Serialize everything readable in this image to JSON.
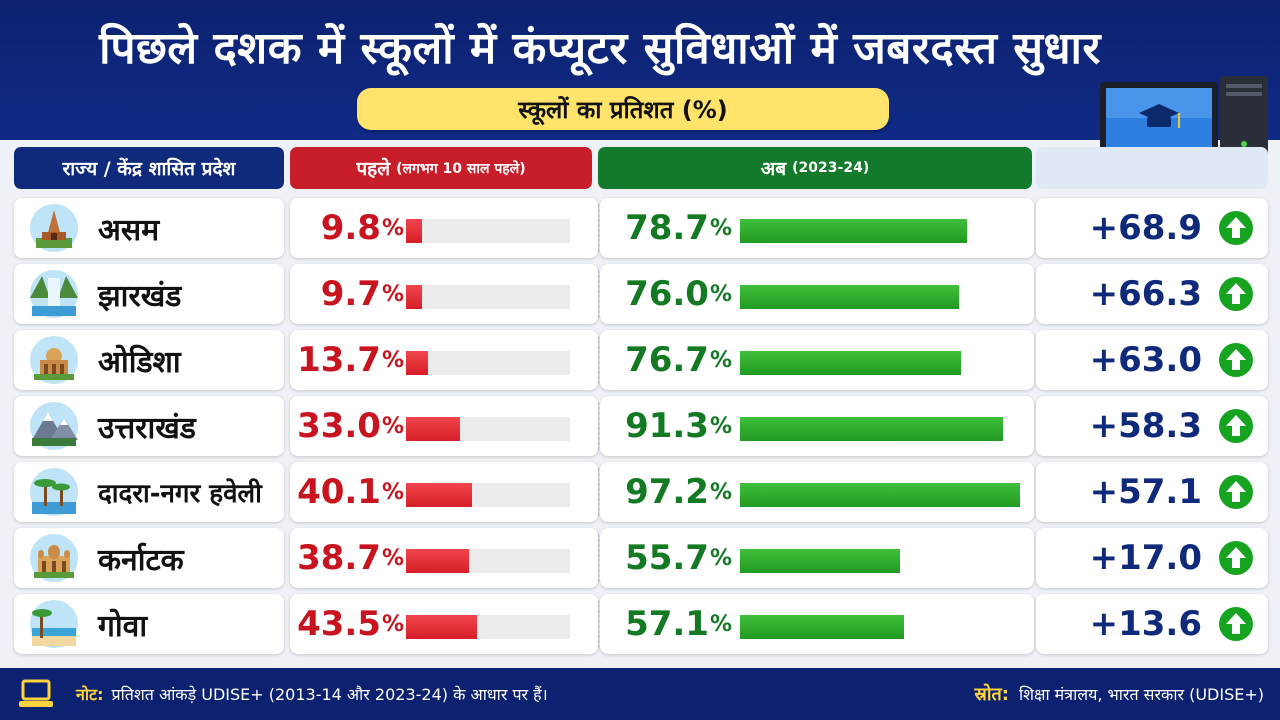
{
  "header": {
    "title": "पिछले दशक में स्कूलों में कंप्यूटर सुविधाओं में जबरदस्त सुधार",
    "subtitle": "स्कूलों का प्रतिशत (%)"
  },
  "columns": {
    "state": "राज्य / केंद्र शासित प्रदेश",
    "before": "पहले",
    "before_note": "(लगभग 10 साल पहले)",
    "now": "अब",
    "now_note": "(2023-24)"
  },
  "percent_sign": "%",
  "chart_data": {
    "type": "table",
    "x_max": 100,
    "rows": [
      {
        "state": "असम",
        "icon": "temple-icon",
        "before": "9.8",
        "now": "78.7",
        "change": "+68.9"
      },
      {
        "state": "झारखंड",
        "icon": "waterfall-icon",
        "before": "9.7",
        "now": "76.0",
        "change": "+66.3"
      },
      {
        "state": "ओडिशा",
        "icon": "monument-icon",
        "before": "13.7",
        "now": "76.7",
        "change": "+63.0"
      },
      {
        "state": "उत्तराखंड",
        "icon": "mountain-icon",
        "before": "33.0",
        "now": "91.3",
        "change": "+58.3"
      },
      {
        "state": "दादरा-नगर हवेली",
        "icon": "palm-tree-icon",
        "before": "40.1",
        "now": "97.2",
        "change": "+57.1"
      },
      {
        "state": "कर्नाटक",
        "icon": "palace-icon",
        "before": "38.7",
        "now": "55.7",
        "change": "+17.0"
      },
      {
        "state": "गोवा",
        "icon": "beach-icon",
        "before": "43.5",
        "now": "57.1",
        "change": "+13.6"
      }
    ]
  },
  "colors": {
    "header_bg": "#0c2270",
    "before_red": "#c8141f",
    "now_green": "#137a23",
    "change_blue": "#0f2a7a",
    "highlight_yellow": "#ffe36a"
  },
  "footer": {
    "note_label": "नोट:",
    "note_text": "प्रतिशत आंकड़े UDISE+ (2013-14 और 2023-24) के आधार पर हैं।",
    "source_label": "स्रोत:",
    "source_text": "शिक्षा मंत्रालय, भारत सरकार (UDISE+)"
  }
}
